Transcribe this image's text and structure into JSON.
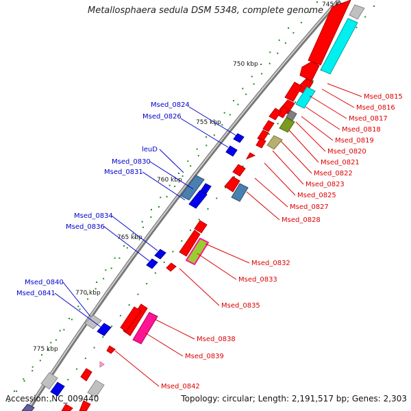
{
  "title": "Metallosphaera sedula DSM 5348, complete genome",
  "accession": "Accession: NC_009440",
  "summary": "Topology: circular; Length: 2,191,517 bp; Genes: 2,303",
  "ticks": [
    "745 kbp",
    "750 kbp",
    "755 kbp",
    "760 kbp",
    "765 kbp",
    "770 kbp",
    "775 kbp"
  ],
  "colors": {
    "backbone": "#8a8a8a",
    "forward_label": "#0000cc",
    "reverse_label": "#dd0000",
    "gene_red": "#ff0000",
    "gene_blue": "#0000ee",
    "gene_cyan": "#00f0f0",
    "gene_steel": "#4a7fb0",
    "gene_gray": "#c0c0c0",
    "gene_olive": "#7a9a20",
    "gene_khaki": "#b5b070",
    "gene_pink": "#ff1493",
    "dots": "#1a8a1a"
  },
  "forward_labels": [
    "Msed_0824",
    "Msed_0826",
    "leuD",
    "Msed_0830",
    "Msed_0831",
    "Msed_0834",
    "Msed_0836",
    "Msed_0840",
    "Msed_0841"
  ],
  "reverse_labels": [
    "Msed_0815",
    "Msed_0816",
    "Msed_0817",
    "Msed_0818",
    "Msed_0819",
    "Msed_0820",
    "Msed_0821",
    "Msed_0822",
    "Msed_0823",
    "Msed_0825",
    "Msed_0827",
    "Msed_0828",
    "Msed_0832",
    "Msed_0833",
    "Msed_0835",
    "Msed_0838",
    "Msed_0839",
    "Msed_0842"
  ]
}
